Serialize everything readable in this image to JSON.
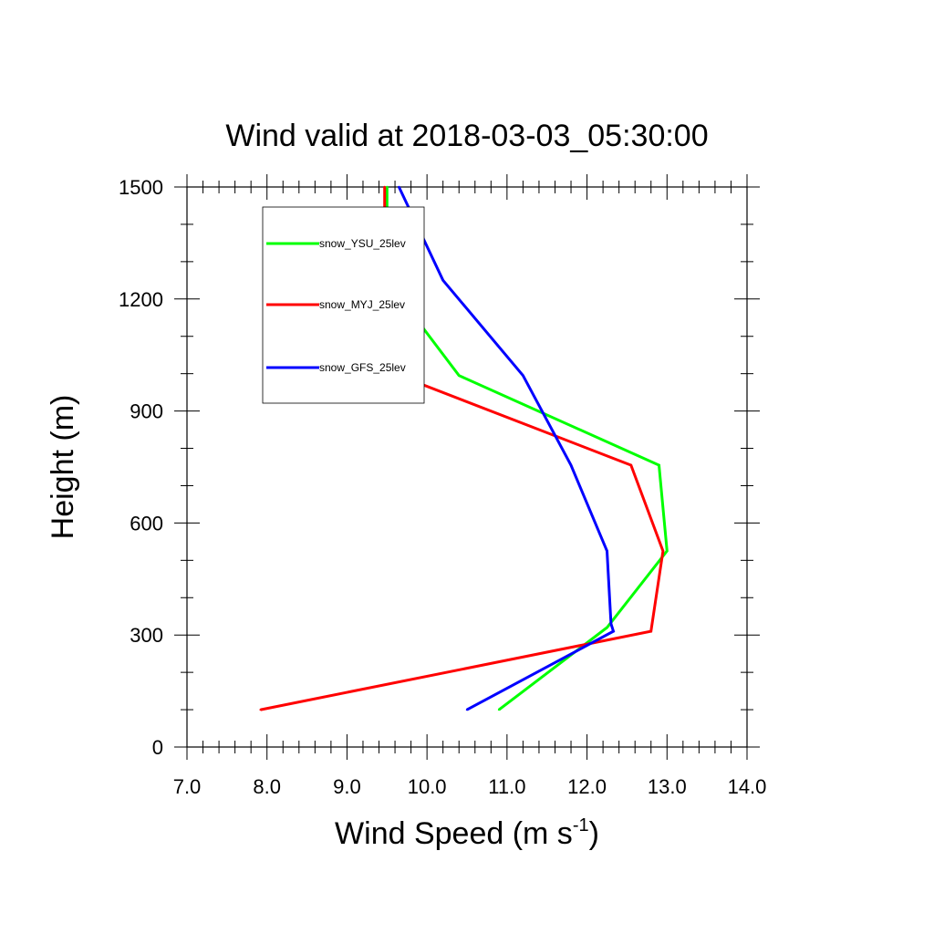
{
  "chart_data": {
    "type": "line",
    "title": "Wind valid at 2018-03-03_05:30:00",
    "xlabel": "Wind Speed (m s",
    "xlabel_sup": "-1",
    "xlabel_end": ")",
    "ylabel": "Height (m)",
    "xlim": [
      7.0,
      14.0
    ],
    "ylim": [
      0,
      1500
    ],
    "x_ticks": [
      "7.0",
      "8.0",
      "9.0",
      "10.0",
      "11.0",
      "12.0",
      "13.0",
      "14.0"
    ],
    "y_ticks": [
      "0",
      "300",
      "600",
      "900",
      "1200",
      "1500"
    ],
    "grid": false,
    "legend_position": "top-left",
    "series": [
      {
        "name": "snow_YSU_25lev",
        "color": "#00ff00",
        "x": [
          10.9,
          12.25,
          13.0,
          12.9,
          10.4,
          9.5,
          9.5
        ],
        "y": [
          100,
          320,
          525,
          755,
          995,
          1250,
          1500
        ]
      },
      {
        "name": "snow_MYJ_25lev",
        "color": "#ff0000",
        "x": [
          7.92,
          12.8,
          12.95,
          12.55,
          9.65,
          9.47,
          9.47
        ],
        "y": [
          100,
          310,
          525,
          755,
          995,
          1250,
          1500
        ]
      },
      {
        "name": "snow_GFS_25lev",
        "color": "#0000ff",
        "x": [
          10.5,
          12.33,
          12.3,
          12.25,
          11.8,
          11.2,
          10.2,
          9.65
        ],
        "y": [
          100,
          310,
          330,
          525,
          755,
          995,
          1250,
          1500
        ]
      }
    ]
  }
}
